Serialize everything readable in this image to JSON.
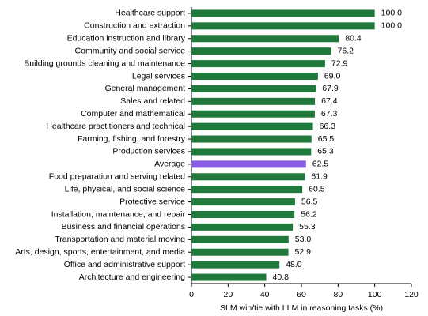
{
  "chart_data": {
    "type": "hbar",
    "categories": [
      "Healthcare support",
      "Construction and extraction",
      "Education instruction and library",
      "Community and social service",
      "Building grounds cleaning and maintenance",
      "Legal services",
      "General management",
      "Sales and related",
      "Computer and mathematical",
      "Healthcare practitioners and technical",
      "Farming, fishing, and forestry",
      "Production services",
      "Average",
      "Food preparation and serving related",
      "Life, physical, and social science",
      "Protective service",
      "Installation, maintenance, and repair",
      "Business and financial operations",
      "Transportation and material moving",
      "Arts, design, sports, entertainment, and media",
      "Office and administrative support",
      "Architecture and engineering"
    ],
    "values": [
      100.0,
      100.0,
      80.4,
      76.2,
      72.9,
      69.0,
      67.9,
      67.4,
      67.3,
      66.3,
      65.5,
      65.3,
      62.5,
      61.9,
      60.5,
      56.5,
      56.2,
      55.3,
      53.0,
      52.9,
      48.0,
      40.8
    ],
    "value_labels": [
      "100.0",
      "100.0",
      "80.4",
      "76.2",
      "72.9",
      "69.0",
      "67.9",
      "67.4",
      "67.3",
      "66.3",
      "65.5",
      "65.3",
      "62.5",
      "61.9",
      "60.5",
      "56.5",
      "56.2",
      "55.3",
      "53.0",
      "52.9",
      "48.0",
      "40.8"
    ],
    "colors": [
      "#1f7a3b",
      "#1f7a3b",
      "#1f7a3b",
      "#1f7a3b",
      "#1f7a3b",
      "#1f7a3b",
      "#1f7a3b",
      "#1f7a3b",
      "#1f7a3b",
      "#1f7a3b",
      "#1f7a3b",
      "#1f7a3b",
      "#8a5ce0",
      "#1f7a3b",
      "#1f7a3b",
      "#1f7a3b",
      "#1f7a3b",
      "#1f7a3b",
      "#1f7a3b",
      "#1f7a3b",
      "#1f7a3b",
      "#1f7a3b"
    ],
    "xlabel": "SLM win/tie with LLM in reasoning tasks (%)",
    "xlim": [
      0,
      120
    ],
    "xticks": [
      0,
      20,
      40,
      60,
      80,
      100,
      120
    ]
  }
}
